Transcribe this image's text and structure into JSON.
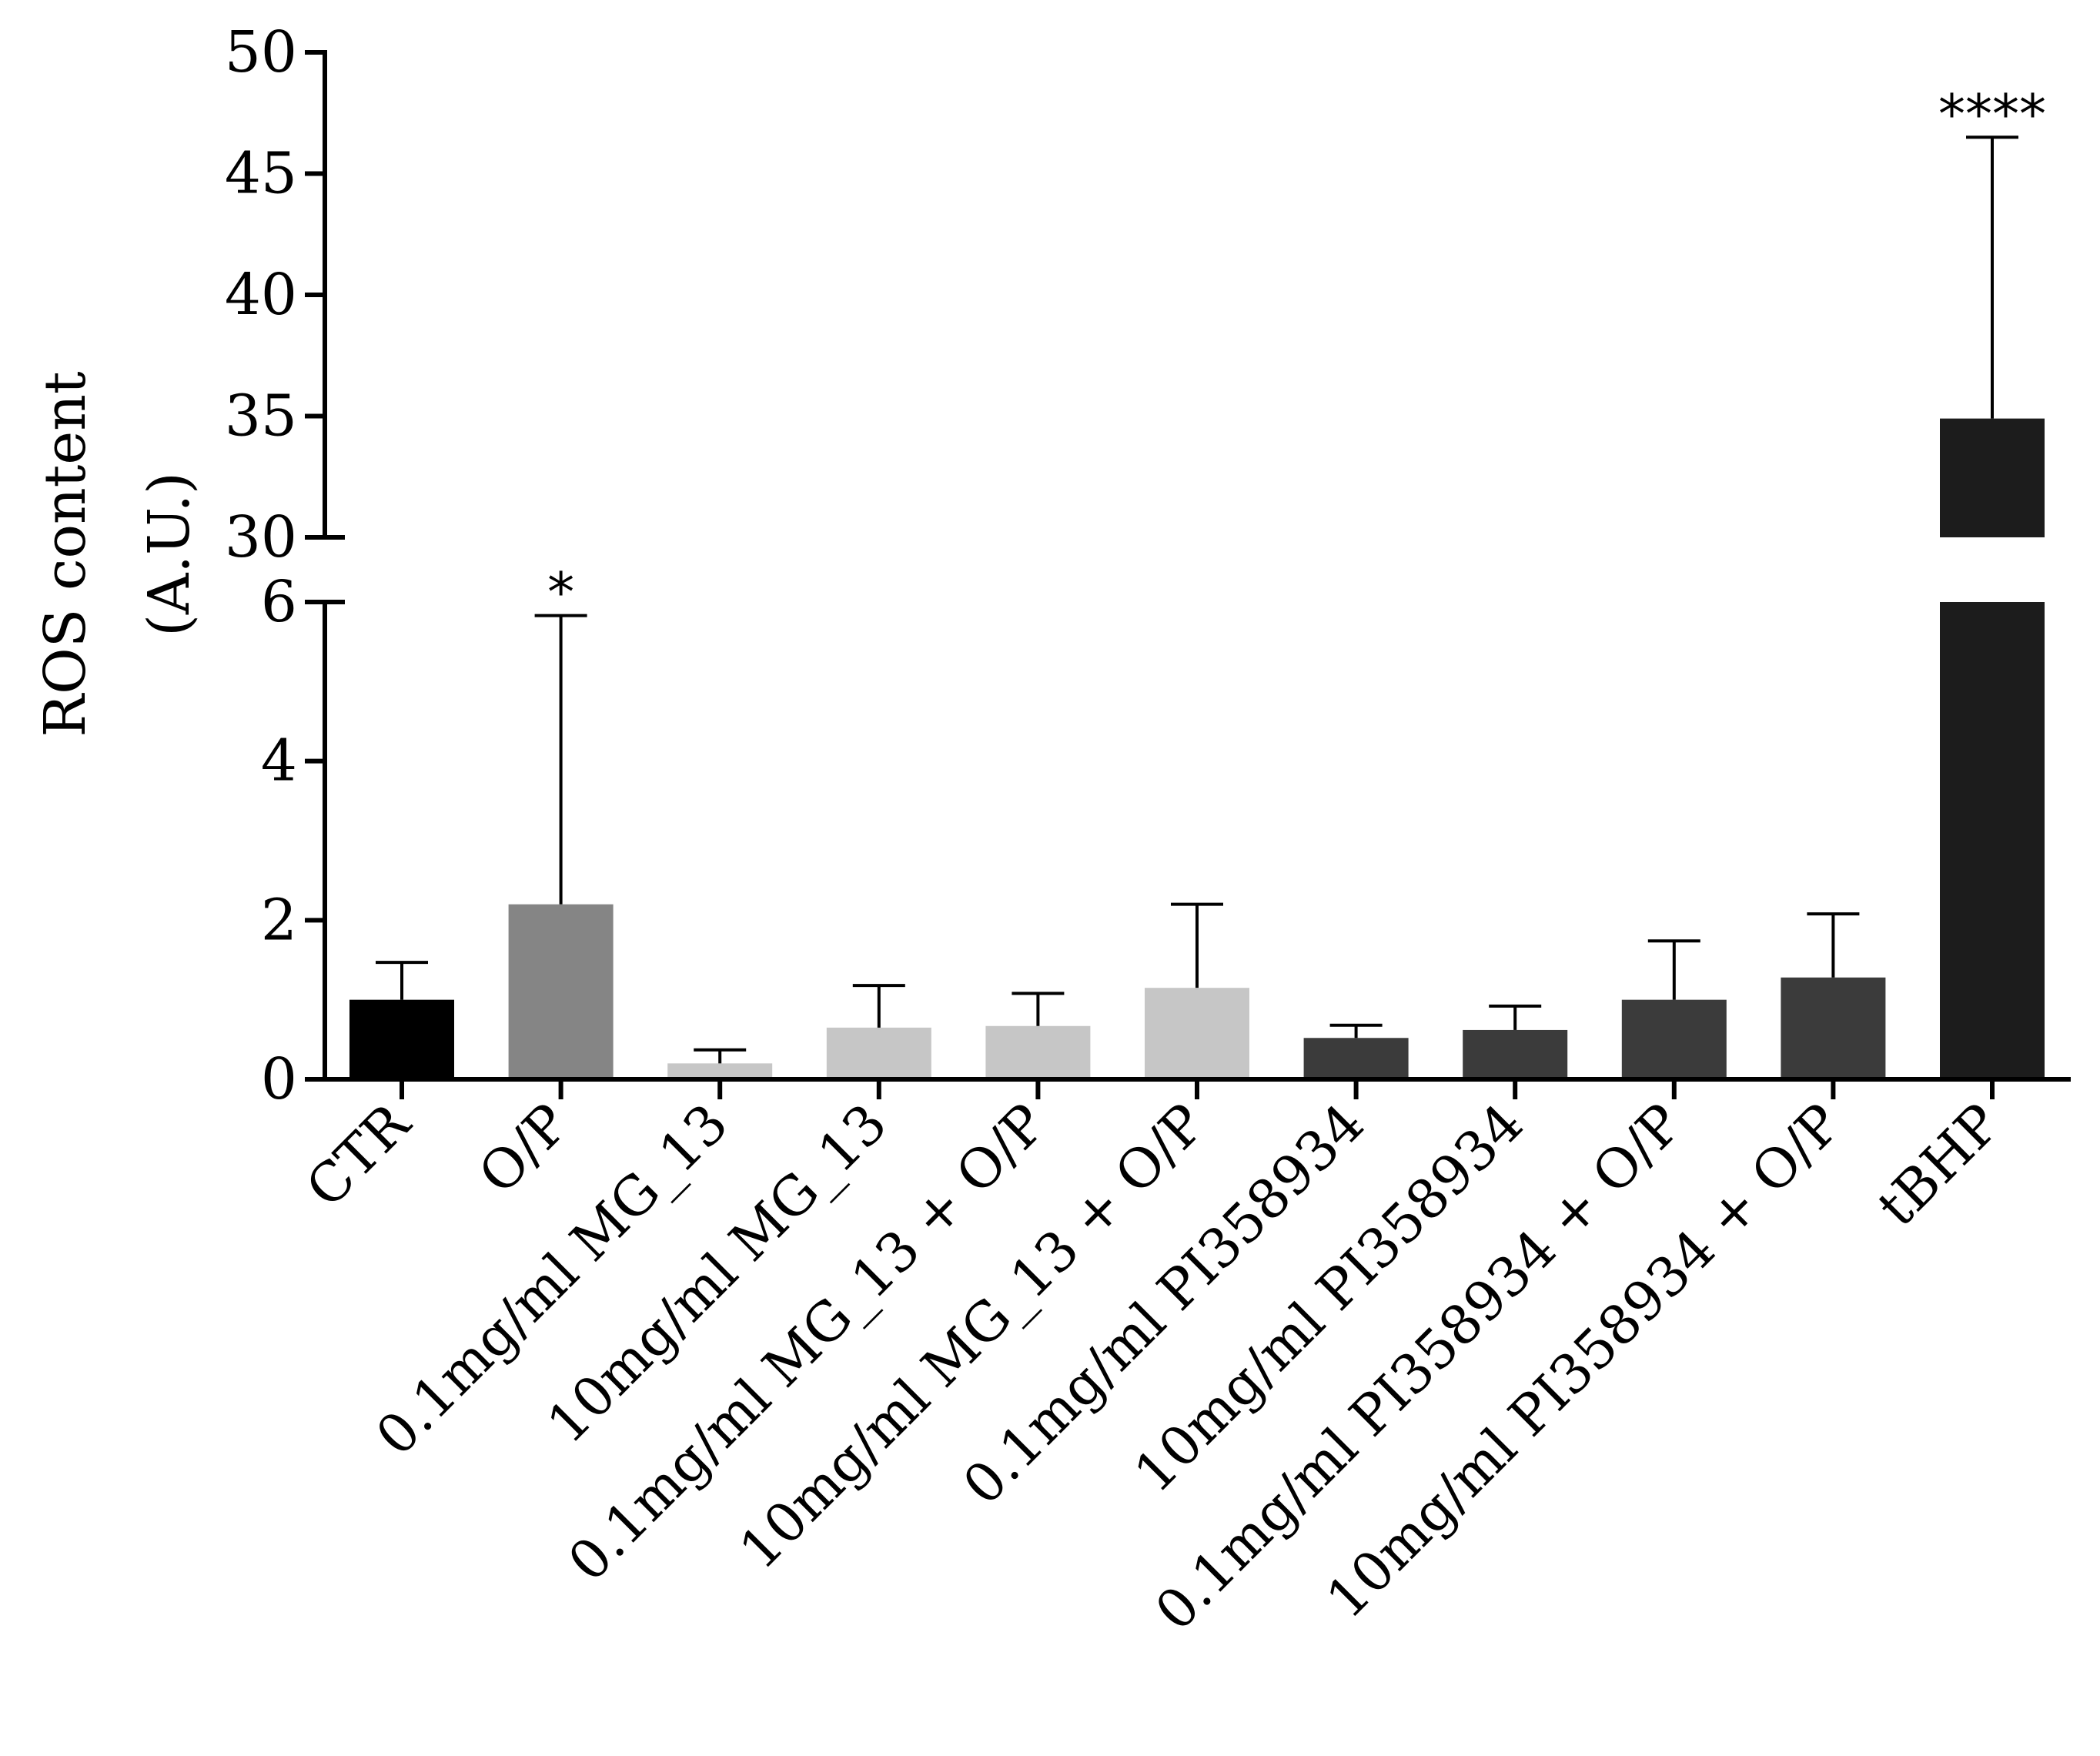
{
  "chart_data": {
    "type": "bar",
    "title": "",
    "xlabel": "",
    "ylabel": [
      "ROS content",
      "(A.U.)"
    ],
    "axis_break": {
      "lower_range": [
        0,
        6
      ],
      "upper_range": [
        30,
        50
      ]
    },
    "yticks_lower": [
      "0",
      "2",
      "4",
      "6"
    ],
    "yticks_upper": [
      "30",
      "35",
      "40",
      "45",
      "50"
    ],
    "categories": [
      "CTR",
      "O/P",
      "0.1mg/ml MG_13",
      "10mg/ml MG_13",
      "0.1mg/ml MG_13 + O/P",
      "10mg/ml MG_13 + O/P",
      "0.1mg/ml PI358934",
      "10mg/ml  PI358934",
      "0.1mg/ml  PI358934 + O/P",
      "10mg/ml  PI358934 + O/P",
      "tBHP"
    ],
    "values": [
      1.0,
      2.2,
      0.2,
      0.65,
      0.67,
      1.15,
      0.52,
      0.62,
      1.0,
      1.28,
      34.9
    ],
    "error_upper": [
      1.47,
      5.83,
      0.37,
      1.18,
      1.08,
      2.2,
      0.68,
      0.92,
      1.74,
      2.08,
      46.5
    ],
    "annotations": [
      "",
      "*",
      "",
      "",
      "",
      "",
      "",
      "",
      "",
      "",
      "****"
    ],
    "colors": [
      "#000000",
      "#858585",
      "#c6c6c6",
      "#c6c6c6",
      "#c6c6c6",
      "#c6c6c6",
      "#3b3b3b",
      "#3b3b3b",
      "#3b3b3b",
      "#3b3b3b",
      "#1c1c1c"
    ]
  }
}
